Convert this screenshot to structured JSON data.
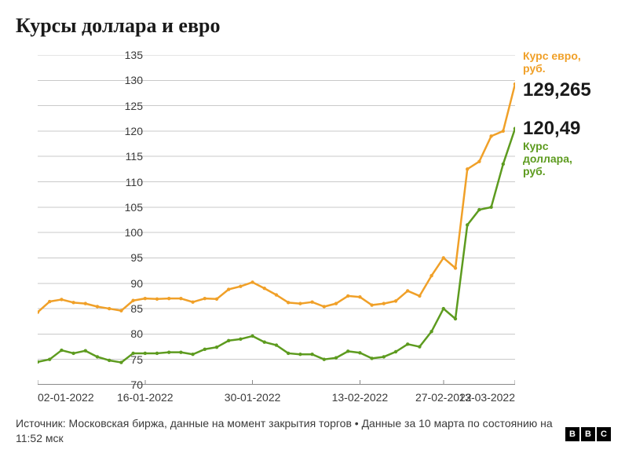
{
  "title": "Курсы доллара и евро",
  "chart": {
    "type": "line",
    "background_color": "#ffffff",
    "grid_color": "#c9c9c9",
    "axis_color": "#8a8a8a",
    "text_color": "#3a3a3a",
    "tick_fontsize": 14,
    "line_width": 2.5,
    "marker_radius": 2.2,
    "ylim": [
      70,
      135
    ],
    "ytick_step": 5,
    "yticks": [
      70,
      75,
      80,
      85,
      90,
      95,
      100,
      105,
      110,
      115,
      120,
      125,
      130,
      135
    ],
    "xlim": [
      0,
      40
    ],
    "xticks": [
      {
        "x": 0,
        "label": "02-01-2022"
      },
      {
        "x": 9,
        "label": "16-01-2022"
      },
      {
        "x": 18,
        "label": "30-01-2022"
      },
      {
        "x": 27,
        "label": "13-02-2022"
      },
      {
        "x": 34,
        "label": "27-02-2022"
      },
      {
        "x": 40,
        "label": "13-03-2022"
      }
    ],
    "series": [
      {
        "id": "eur",
        "label": "Курс евро,\nруб.",
        "value_label": "129,265",
        "color": "#f0a028",
        "points": [
          {
            "x": 0,
            "y": 84.3
          },
          {
            "x": 1,
            "y": 86.4
          },
          {
            "x": 2,
            "y": 86.8
          },
          {
            "x": 3,
            "y": 86.2
          },
          {
            "x": 4,
            "y": 86.0
          },
          {
            "x": 5,
            "y": 85.4
          },
          {
            "x": 6,
            "y": 85.0
          },
          {
            "x": 7,
            "y": 84.6
          },
          {
            "x": 8,
            "y": 86.6
          },
          {
            "x": 9,
            "y": 87.0
          },
          {
            "x": 10,
            "y": 86.9
          },
          {
            "x": 11,
            "y": 87.0
          },
          {
            "x": 12,
            "y": 87.0
          },
          {
            "x": 13,
            "y": 86.3
          },
          {
            "x": 14,
            "y": 87.0
          },
          {
            "x": 15,
            "y": 86.9
          },
          {
            "x": 16,
            "y": 88.8
          },
          {
            "x": 17,
            "y": 89.4
          },
          {
            "x": 18,
            "y": 90.2
          },
          {
            "x": 19,
            "y": 89.0
          },
          {
            "x": 20,
            "y": 87.7
          },
          {
            "x": 21,
            "y": 86.2
          },
          {
            "x": 22,
            "y": 86.0
          },
          {
            "x": 23,
            "y": 86.3
          },
          {
            "x": 24,
            "y": 85.4
          },
          {
            "x": 25,
            "y": 86.0
          },
          {
            "x": 26,
            "y": 87.5
          },
          {
            "x": 27,
            "y": 87.3
          },
          {
            "x": 28,
            "y": 85.7
          },
          {
            "x": 29,
            "y": 86.0
          },
          {
            "x": 30,
            "y": 86.5
          },
          {
            "x": 31,
            "y": 88.5
          },
          {
            "x": 32,
            "y": 87.5
          },
          {
            "x": 33,
            "y": 91.5
          },
          {
            "x": 34,
            "y": 95.0
          },
          {
            "x": 35,
            "y": 93.0
          },
          {
            "x": 36,
            "y": 112.5
          },
          {
            "x": 37,
            "y": 114.0
          },
          {
            "x": 38,
            "y": 119.0
          },
          {
            "x": 39,
            "y": 120.0
          },
          {
            "x": 40,
            "y": 129.265
          }
        ]
      },
      {
        "id": "usd",
        "label": "Курс\nдоллара,\nруб.",
        "value_label": "120,49",
        "color": "#5d9b1f",
        "points": [
          {
            "x": 0,
            "y": 74.5
          },
          {
            "x": 1,
            "y": 75.0
          },
          {
            "x": 2,
            "y": 76.8
          },
          {
            "x": 3,
            "y": 76.2
          },
          {
            "x": 4,
            "y": 76.7
          },
          {
            "x": 5,
            "y": 75.5
          },
          {
            "x": 6,
            "y": 74.8
          },
          {
            "x": 7,
            "y": 74.4
          },
          {
            "x": 8,
            "y": 76.2
          },
          {
            "x": 9,
            "y": 76.2
          },
          {
            "x": 10,
            "y": 76.2
          },
          {
            "x": 11,
            "y": 76.4
          },
          {
            "x": 12,
            "y": 76.4
          },
          {
            "x": 13,
            "y": 76.0
          },
          {
            "x": 14,
            "y": 77.0
          },
          {
            "x": 15,
            "y": 77.4
          },
          {
            "x": 16,
            "y": 78.7
          },
          {
            "x": 17,
            "y": 79.0
          },
          {
            "x": 18,
            "y": 79.6
          },
          {
            "x": 19,
            "y": 78.4
          },
          {
            "x": 20,
            "y": 77.8
          },
          {
            "x": 21,
            "y": 76.2
          },
          {
            "x": 22,
            "y": 76.0
          },
          {
            "x": 23,
            "y": 76.0
          },
          {
            "x": 24,
            "y": 75.0
          },
          {
            "x": 25,
            "y": 75.3
          },
          {
            "x": 26,
            "y": 76.6
          },
          {
            "x": 27,
            "y": 76.3
          },
          {
            "x": 28,
            "y": 75.2
          },
          {
            "x": 29,
            "y": 75.5
          },
          {
            "x": 30,
            "y": 76.5
          },
          {
            "x": 31,
            "y": 78.0
          },
          {
            "x": 32,
            "y": 77.5
          },
          {
            "x": 33,
            "y": 80.5
          },
          {
            "x": 34,
            "y": 85.0
          },
          {
            "x": 35,
            "y": 83.0
          },
          {
            "x": 36,
            "y": 101.5
          },
          {
            "x": 37,
            "y": 104.5
          },
          {
            "x": 38,
            "y": 105.0
          },
          {
            "x": 39,
            "y": 113.5
          },
          {
            "x": 40,
            "y": 120.49
          }
        ]
      }
    ]
  },
  "footer": {
    "text": "Источник: Московская биржа, данные на момент закрытия торгов • Данные за 10 марта по состоянию на 11:52 мск"
  },
  "logo": {
    "letters": [
      "B",
      "B",
      "C"
    ],
    "bg": "#000000",
    "fg": "#ffffff"
  }
}
